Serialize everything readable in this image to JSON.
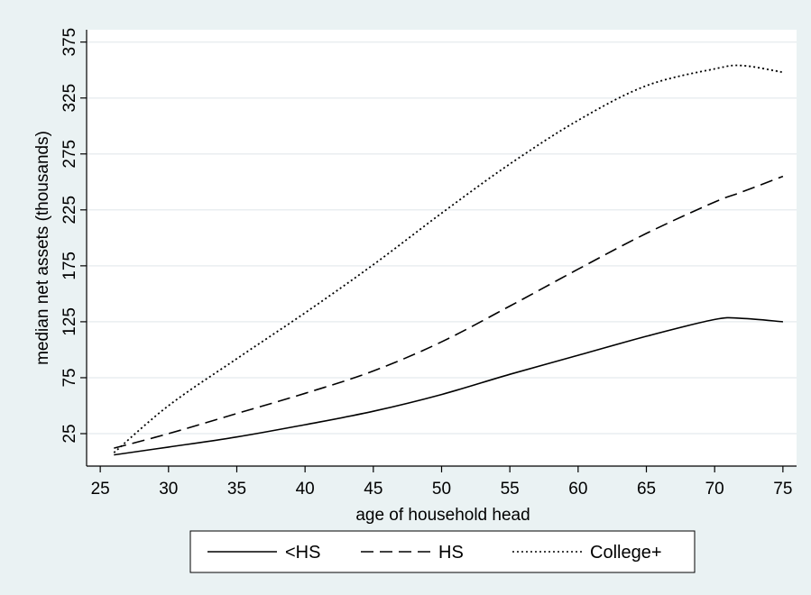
{
  "chart_data": {
    "type": "line",
    "xlabel": "age of household head",
    "ylabel": "median net assets (thousands)",
    "xlim": [
      24,
      76
    ],
    "ylim": [
      -4,
      386
    ],
    "xticks": [
      25,
      30,
      35,
      40,
      45,
      50,
      55,
      60,
      65,
      70,
      75
    ],
    "yticks": [
      25,
      75,
      125,
      175,
      225,
      275,
      325,
      375
    ],
    "grid": "horizontal",
    "legend": "bottom",
    "x": [
      26,
      30,
      35,
      40,
      45,
      50,
      55,
      60,
      65,
      70,
      72,
      75
    ],
    "series": [
      {
        "name": "<HS",
        "style": "solid",
        "values": [
          6,
          13,
          22,
          33,
          45,
          60,
          78,
          95,
          112,
          127,
          128,
          125
        ]
      },
      {
        "name": "HS",
        "style": "dashed",
        "values": [
          12,
          25,
          43,
          61,
          81,
          107,
          139,
          172,
          204,
          232,
          241,
          255
        ]
      },
      {
        "name": "College+",
        "style": "dotted",
        "values": [
          8,
          50,
          92,
          133,
          176,
          222,
          266,
          305,
          336,
          351,
          354,
          348
        ]
      }
    ]
  }
}
